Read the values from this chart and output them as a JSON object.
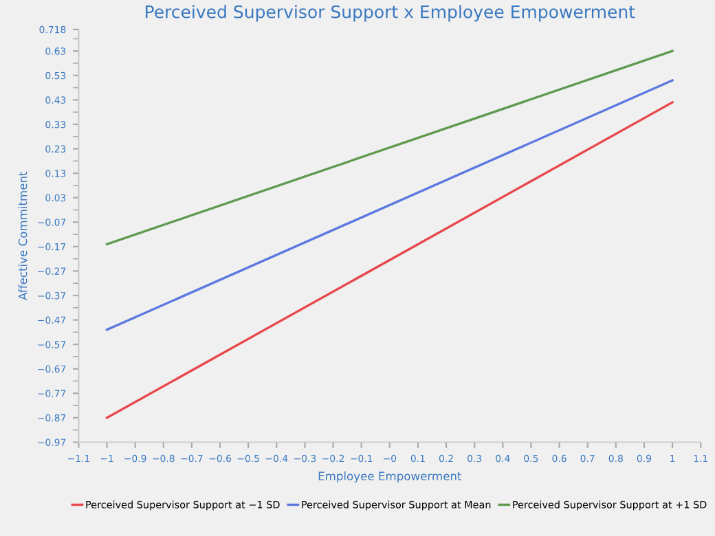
{
  "chart_data": {
    "type": "line",
    "title": "Perceived Supervisor Support x Employee Empowerment",
    "xlabel": "Employee Empowerment",
    "ylabel": "Affective Commitment",
    "x": [
      -1,
      1
    ],
    "series": [
      {
        "name": "Perceived Supervisor Support at −1 SD",
        "color": "#e8474c",
        "values": [
          -0.87,
          0.42
        ]
      },
      {
        "name": "Perceived Supervisor Support at Mean",
        "color": "#5b78e0",
        "values": [
          -0.51,
          0.51
        ]
      },
      {
        "name": "Perceived Supervisor Support at +1 SD",
        "color": "#5f9a50",
        "values": [
          -0.16,
          0.63
        ]
      }
    ],
    "xlim": [
      -1.1,
      1.1
    ],
    "xticks": [
      {
        "value": -1.1,
        "label": "−1.1"
      },
      {
        "value": -1,
        "label": "−1"
      },
      {
        "value": -0.9,
        "label": "−0.9"
      },
      {
        "value": -0.8,
        "label": "−0.8"
      },
      {
        "value": -0.7,
        "label": "−0.7"
      },
      {
        "value": -0.6,
        "label": "−0.6"
      },
      {
        "value": -0.5,
        "label": "−0.5"
      },
      {
        "value": -0.4,
        "label": "−0.4"
      },
      {
        "value": -0.3,
        "label": "−0.3"
      },
      {
        "value": -0.2,
        "label": "−0.2"
      },
      {
        "value": -0.1,
        "label": "−0.1"
      },
      {
        "value": 0,
        "label": "−0"
      },
      0.1,
      0.2,
      0.3,
      0.4,
      0.5,
      0.6,
      0.7,
      0.8,
      0.9,
      1,
      1.1
    ],
    "ylim": [
      -0.97,
      0.718
    ],
    "yticks": [
      {
        "value": -0.97,
        "label": "−0.97"
      },
      {
        "value": -0.87,
        "label": "−0.87"
      },
      {
        "value": -0.77,
        "label": "−0.77"
      },
      {
        "value": -0.67,
        "label": "−0.67"
      },
      {
        "value": -0.57,
        "label": "−0.57"
      },
      {
        "value": -0.47,
        "label": "−0.47"
      },
      {
        "value": -0.37,
        "label": "−0.37"
      },
      {
        "value": -0.27,
        "label": "−0.27"
      },
      {
        "value": -0.17,
        "label": "−0.17"
      },
      {
        "value": -0.07,
        "label": "−0.07"
      },
      0.03,
      0.13,
      0.23,
      0.33,
      0.43,
      0.53,
      0.63,
      0.718
    ],
    "grid": false,
    "legend": "bottom",
    "marker": "none",
    "line_style": "solid"
  }
}
